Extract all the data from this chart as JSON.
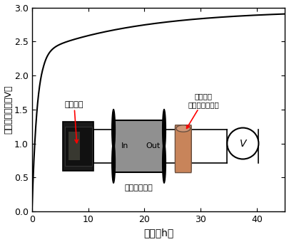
{
  "xlabel": "時間（h）",
  "ylabel": "電池出力電圧（V）",
  "xlim": [
    0,
    45
  ],
  "ylim": [
    0.0,
    3.0
  ],
  "xticks": [
    0,
    10,
    20,
    30,
    40
  ],
  "yticks": [
    0.0,
    0.5,
    1.0,
    1.5,
    2.0,
    2.5,
    3.0
  ],
  "line_color": "#000000",
  "line_width": 1.5,
  "bg_color": "#ffffff",
  "label_kaihatsusoshi": "開発素子",
  "label_richiumu": "リチウム\nイオン二次電池",
  "label_denatsushouatsu": "電圧昇圧回路",
  "label_in": "In",
  "label_out": "Out",
  "label_V": "V",
  "circuit_box_color": "#909090",
  "battery_color": "#c8845a",
  "battery_top_color": "#d09878"
}
